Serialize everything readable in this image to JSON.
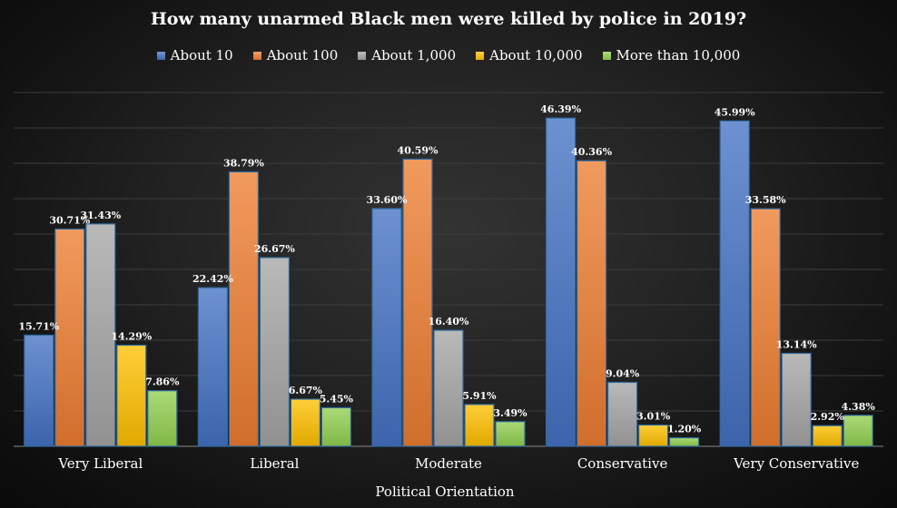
{
  "chart_data": {
    "type": "bar",
    "title": "How many unarmed Black men were killed by police in 2019?",
    "xlabel": "Political Orientation",
    "ylabel": "",
    "ylim": [
      0,
      50
    ],
    "grid": true,
    "legend_position": "top",
    "categories": [
      "Very Liberal",
      "Liberal",
      "Moderate",
      "Conservative",
      "Very Conservative"
    ],
    "series": [
      {
        "name": "About 10",
        "color": "#4472C4",
        "values": [
          15.71,
          22.42,
          33.6,
          46.39,
          45.99
        ],
        "labels": [
          "15.71%",
          "22.42%",
          "33.60%",
          "46.39%",
          "45.99%"
        ]
      },
      {
        "name": "About 100",
        "color": "#ED7D31",
        "values": [
          30.71,
          38.79,
          40.59,
          40.36,
          33.58
        ],
        "labels": [
          "30.71%",
          "38.79%",
          "40.59%",
          "40.36%",
          "33.58%"
        ]
      },
      {
        "name": "About 1,000",
        "color": "#A5A5A5",
        "values": [
          31.43,
          26.67,
          16.4,
          9.04,
          13.14
        ],
        "labels": [
          "31.43%",
          "26.67%",
          "16.40%",
          "9.04%",
          "13.14%"
        ]
      },
      {
        "name": "About 10,000",
        "color": "#FFC000",
        "values": [
          14.29,
          6.67,
          5.91,
          3.01,
          2.92
        ],
        "labels": [
          "14.29%",
          "6.67%",
          "5.91%",
          "3.01%",
          "2.92%"
        ]
      },
      {
        "name": "More than 10,000",
        "color": "#92D050",
        "values": [
          7.86,
          5.45,
          3.49,
          1.2,
          4.38
        ],
        "labels": [
          "7.86%",
          "5.45%",
          "3.49%",
          "1.20%",
          "4.38%"
        ]
      }
    ]
  }
}
